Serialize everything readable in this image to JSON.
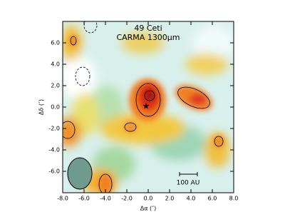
{
  "chart_data": {
    "type": "image",
    "title": "49 Ceti",
    "subtitle": "CARMA 1300μm",
    "x_label": "Δα (″)",
    "y_label": "Δδ (″)",
    "annotations": [
      "100 AU"
    ],
    "xlim": [
      -8,
      8
    ],
    "ylim": [
      -8,
      8
    ],
    "xticks": [
      {
        "value": -8,
        "label": "-8.0"
      },
      {
        "value": -6,
        "label": "-6.0"
      },
      {
        "value": -4,
        "label": "-4.0"
      },
      {
        "value": -2,
        "label": "-2.0"
      },
      {
        "value": 0,
        "label": "0.0"
      },
      {
        "value": 2,
        "label": "2.0"
      },
      {
        "value": 4,
        "label": "4.0"
      },
      {
        "value": 6,
        "label": "6.0"
      },
      {
        "value": 8,
        "label": "8.0"
      }
    ],
    "yticks": [
      {
        "value": -6,
        "label": "-6.0"
      },
      {
        "value": -4,
        "label": "-4.0"
      },
      {
        "value": -2,
        "label": "-2.0"
      },
      {
        "value": 0,
        "label": "0.0"
      },
      {
        "value": 2,
        "label": "2.0"
      },
      {
        "value": 4,
        "label": "4.0"
      },
      {
        "value": 6,
        "label": "6.0"
      }
    ]
  }
}
